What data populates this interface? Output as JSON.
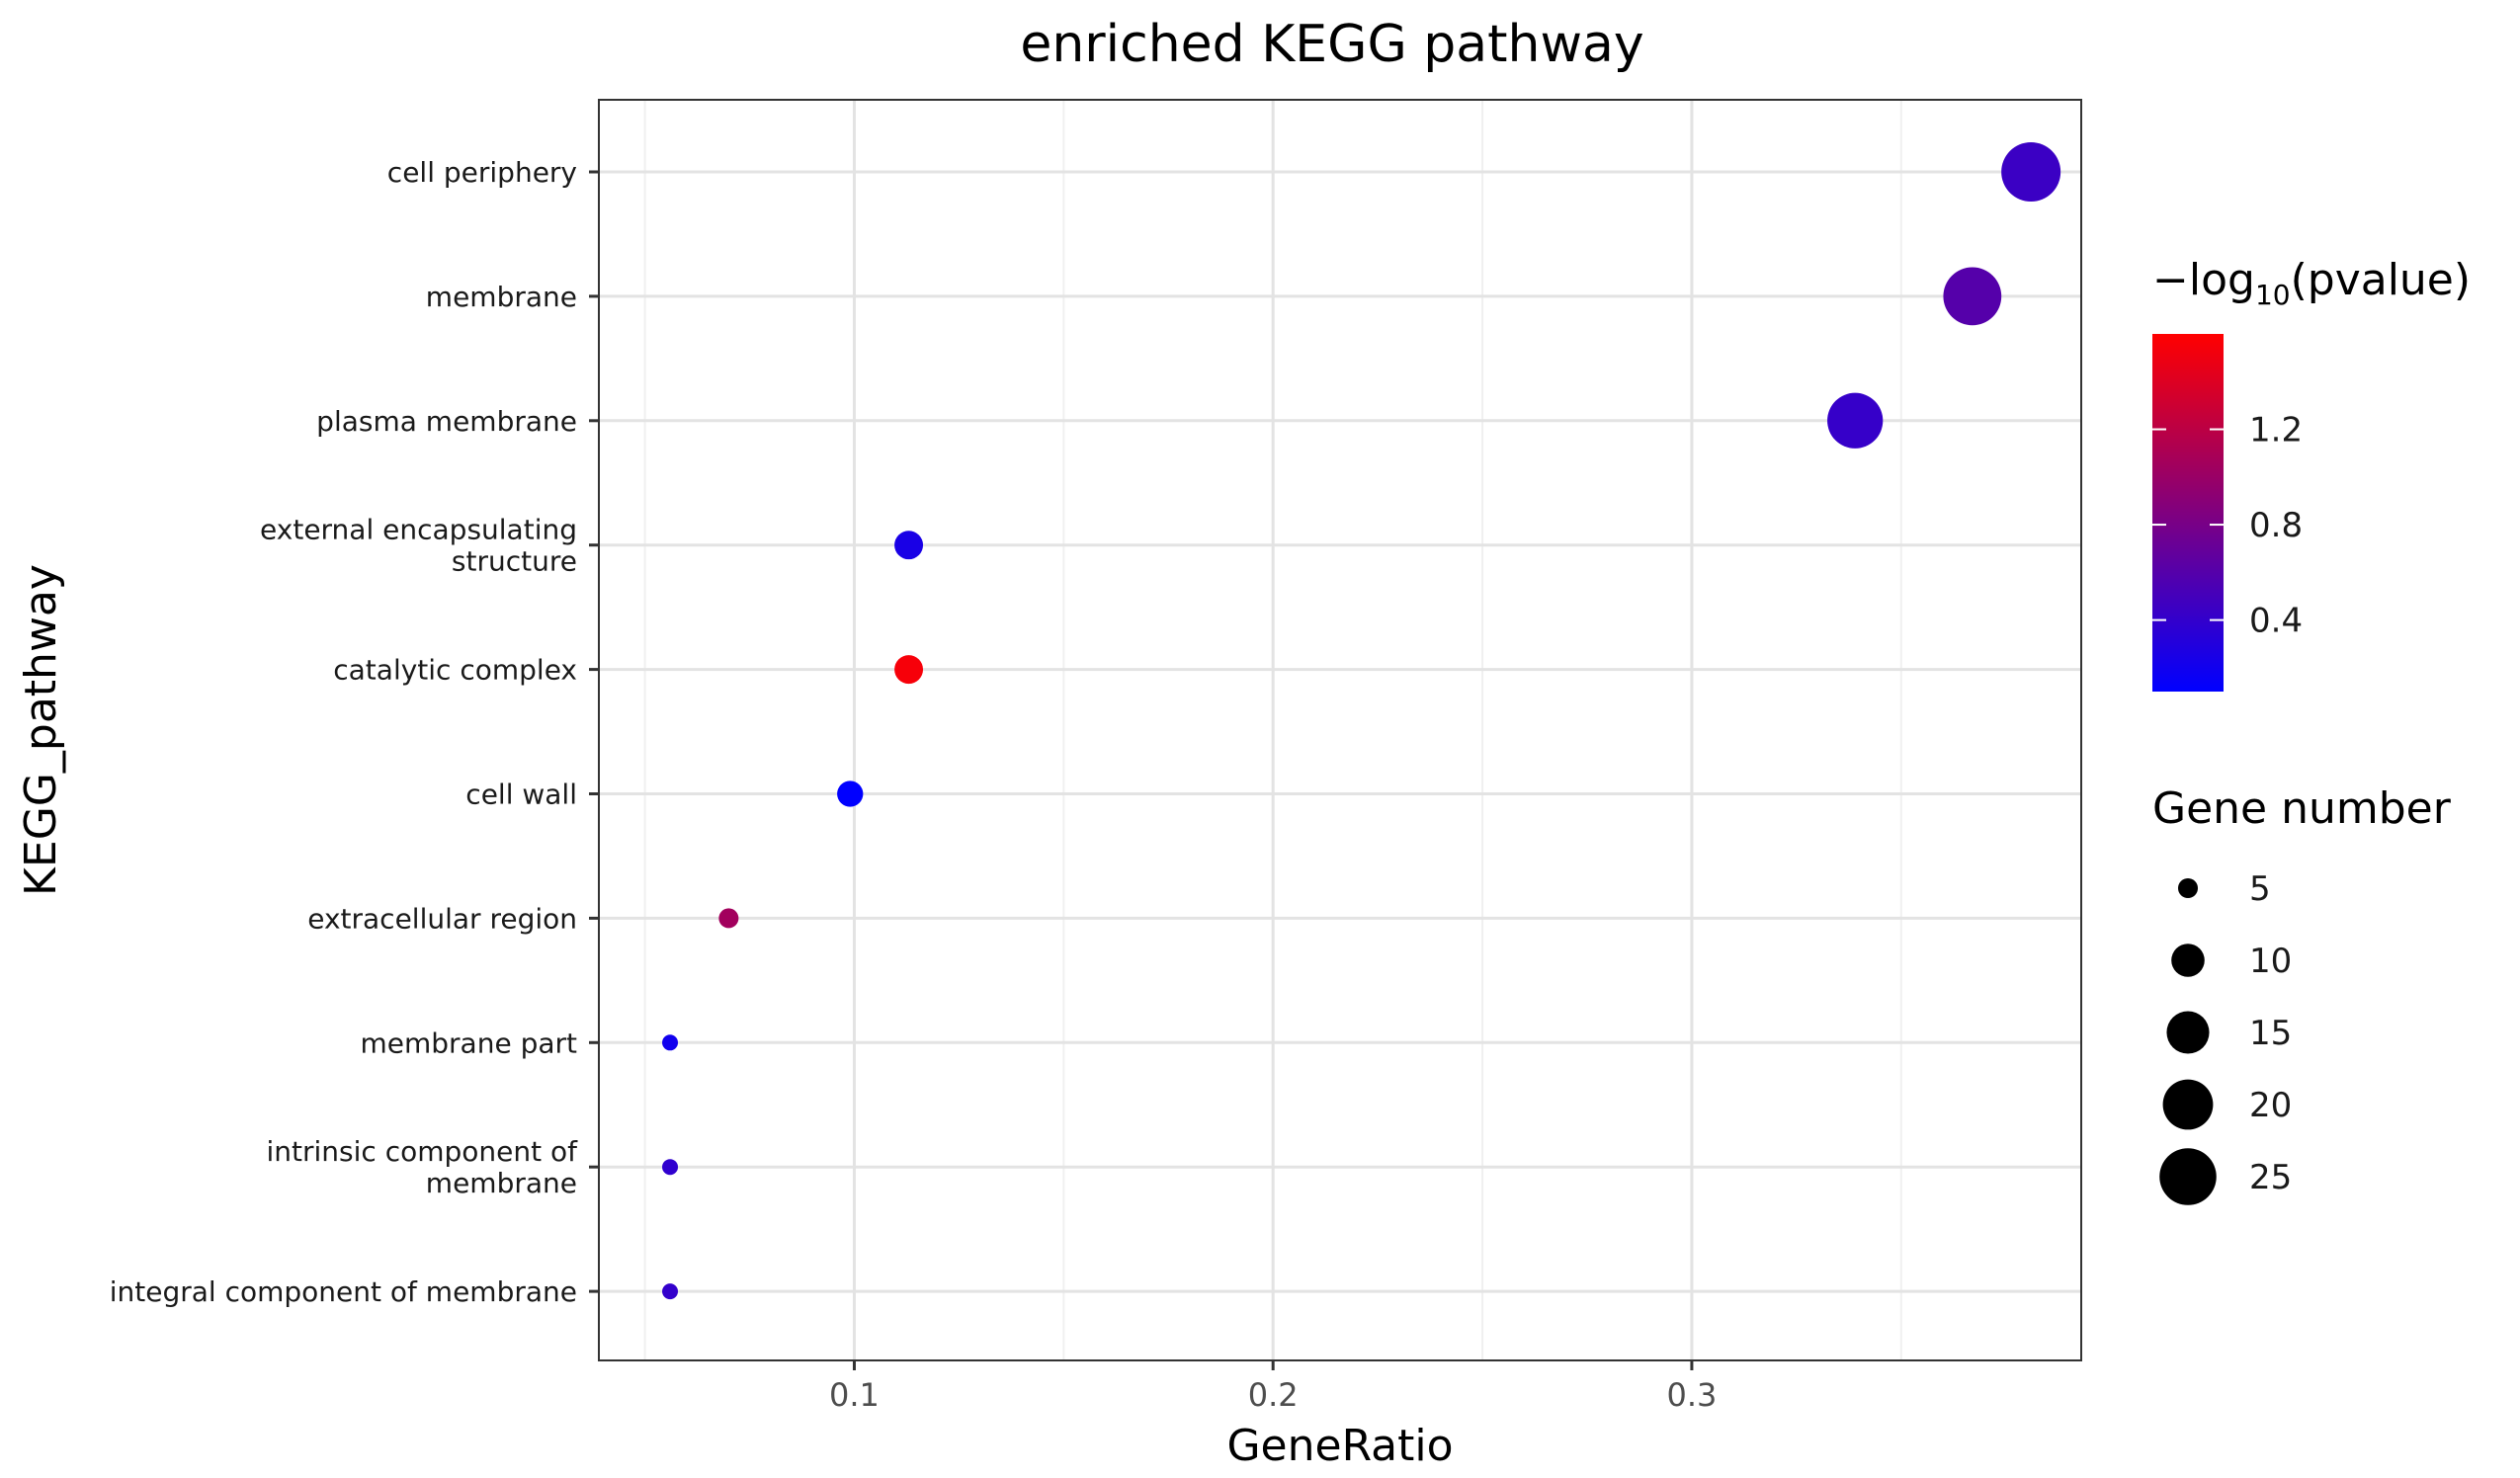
{
  "chart_data": {
    "type": "scatter",
    "title": "enriched KEGG pathway",
    "xlabel": "GeneRatio",
    "ylabel": "KEGG_pathway",
    "xlim": [
      0.039,
      0.393
    ],
    "x_ticks": [
      {
        "value": 0.1,
        "label": "0.1"
      },
      {
        "value": 0.2,
        "label": "0.2"
      },
      {
        "value": 0.3,
        "label": "0.3"
      }
    ],
    "grid": true,
    "categories": [
      [
        "cell periphery"
      ],
      [
        "membrane"
      ],
      [
        "plasma membrane"
      ],
      [
        "external encapsulating",
        "structure"
      ],
      [
        "catalytic complex"
      ],
      [
        "cell wall"
      ],
      [
        "extracellular region"
      ],
      [
        "membrane part"
      ],
      [
        "intrinsic component of",
        "membrane"
      ],
      [
        "integral component of membrane"
      ]
    ],
    "points": [
      {
        "category": "cell periphery",
        "gene_ratio": 0.381,
        "gene_number": 27,
        "neg_log10_pvalue": 0.45
      },
      {
        "category": "membrane",
        "gene_ratio": 0.367,
        "gene_number": 26,
        "neg_log10_pvalue": 0.6
      },
      {
        "category": "plasma membrane",
        "gene_ratio": 0.339,
        "gene_number": 24,
        "neg_log10_pvalue": 0.42
      },
      {
        "category": "external encapsulating structure",
        "gene_ratio": 0.113,
        "gene_number": 8,
        "neg_log10_pvalue": 0.25
      },
      {
        "category": "catalytic complex",
        "gene_ratio": 0.113,
        "gene_number": 8,
        "neg_log10_pvalue": 1.55
      },
      {
        "category": "cell wall",
        "gene_ratio": 0.099,
        "gene_number": 7,
        "neg_log10_pvalue": 0.1
      },
      {
        "category": "extracellular region",
        "gene_ratio": 0.07,
        "gene_number": 5,
        "neg_log10_pvalue": 1.05
      },
      {
        "category": "membrane part",
        "gene_ratio": 0.056,
        "gene_number": 4,
        "neg_log10_pvalue": 0.2
      },
      {
        "category": "intrinsic component of membrane",
        "gene_ratio": 0.056,
        "gene_number": 4,
        "neg_log10_pvalue": 0.38
      },
      {
        "category": "integral component of membrane",
        "gene_ratio": 0.056,
        "gene_number": 4,
        "neg_log10_pvalue": 0.4
      }
    ],
    "color_legend": {
      "title_prefix": "−log",
      "title_subscript": "10",
      "title_suffix": "(pvalue)",
      "range": [
        0.1,
        1.6
      ],
      "ticks": [
        {
          "value": 0.4,
          "label": "0.4"
        },
        {
          "value": 0.8,
          "label": "0.8"
        },
        {
          "value": 1.2,
          "label": "1.2"
        }
      ],
      "low_color": "#0000ff",
      "high_color": "#ff0000"
    },
    "size_legend": {
      "title": "Gene number",
      "entries": [
        {
          "value": 5,
          "label": "5"
        },
        {
          "value": 10,
          "label": "10"
        },
        {
          "value": 15,
          "label": "15"
        },
        {
          "value": 20,
          "label": "20"
        },
        {
          "value": 25,
          "label": "25"
        }
      ]
    }
  }
}
